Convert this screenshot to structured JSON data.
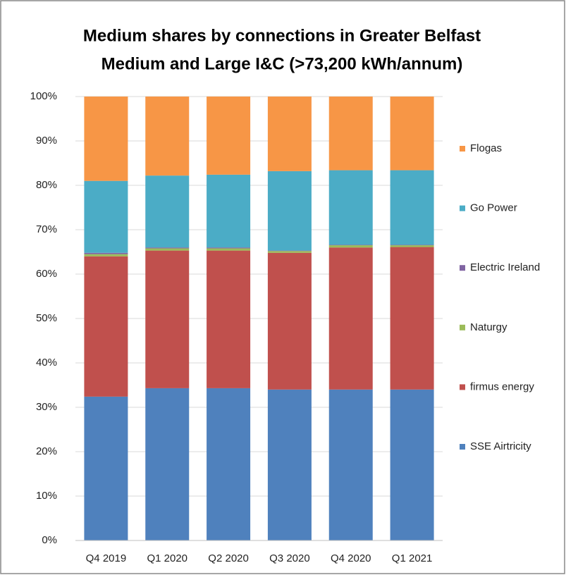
{
  "chart_data": {
    "type": "bar",
    "stacked": true,
    "title": [
      "Medium shares by connections in Greater Belfast",
      "Medium and Large I&C (>73,200 kWh/annum)"
    ],
    "categories": [
      "Q4 2019",
      "Q1 2020",
      "Q2 2020",
      "Q3 2020",
      "Q4 2020",
      "Q1 2021"
    ],
    "series": [
      {
        "name": "SSE Airtricity",
        "color": "#4f81bd",
        "values": [
          32.4,
          34.3,
          34.3,
          34.0,
          34.0,
          34.0
        ]
      },
      {
        "name": "firmus energy",
        "color": "#c0504d",
        "values": [
          31.6,
          31.0,
          31.0,
          30.8,
          32.0,
          32.1
        ]
      },
      {
        "name": "Naturgy",
        "color": "#9bbb59",
        "values": [
          0.5,
          0.5,
          0.5,
          0.4,
          0.5,
          0.4
        ]
      },
      {
        "name": "Electric Ireland",
        "color": "#8064a2",
        "values": [
          0.3,
          0.2,
          0.2,
          0.1,
          0.1,
          0.1
        ]
      },
      {
        "name": "Go Power",
        "color": "#4bacc6",
        "values": [
          16.2,
          16.2,
          16.4,
          17.9,
          16.8,
          16.8
        ]
      },
      {
        "name": "Flogas",
        "color": "#f79646",
        "values": [
          19.0,
          17.8,
          17.6,
          16.8,
          16.6,
          16.6
        ]
      }
    ],
    "ylim": [
      0,
      100
    ],
    "yticks": [
      {
        "value": 0,
        "label": "0%"
      },
      {
        "value": 10,
        "label": "10%"
      },
      {
        "value": 20,
        "label": "20%"
      },
      {
        "value": 30,
        "label": "30%"
      },
      {
        "value": 40,
        "label": "40%"
      },
      {
        "value": 50,
        "label": "50%"
      },
      {
        "value": 60,
        "label": "60%"
      },
      {
        "value": 70,
        "label": "70%"
      },
      {
        "value": 80,
        "label": "80%"
      },
      {
        "value": 90,
        "label": "90%"
      },
      {
        "value": 100,
        "label": "100%"
      }
    ],
    "grid": true,
    "legend": "right"
  }
}
